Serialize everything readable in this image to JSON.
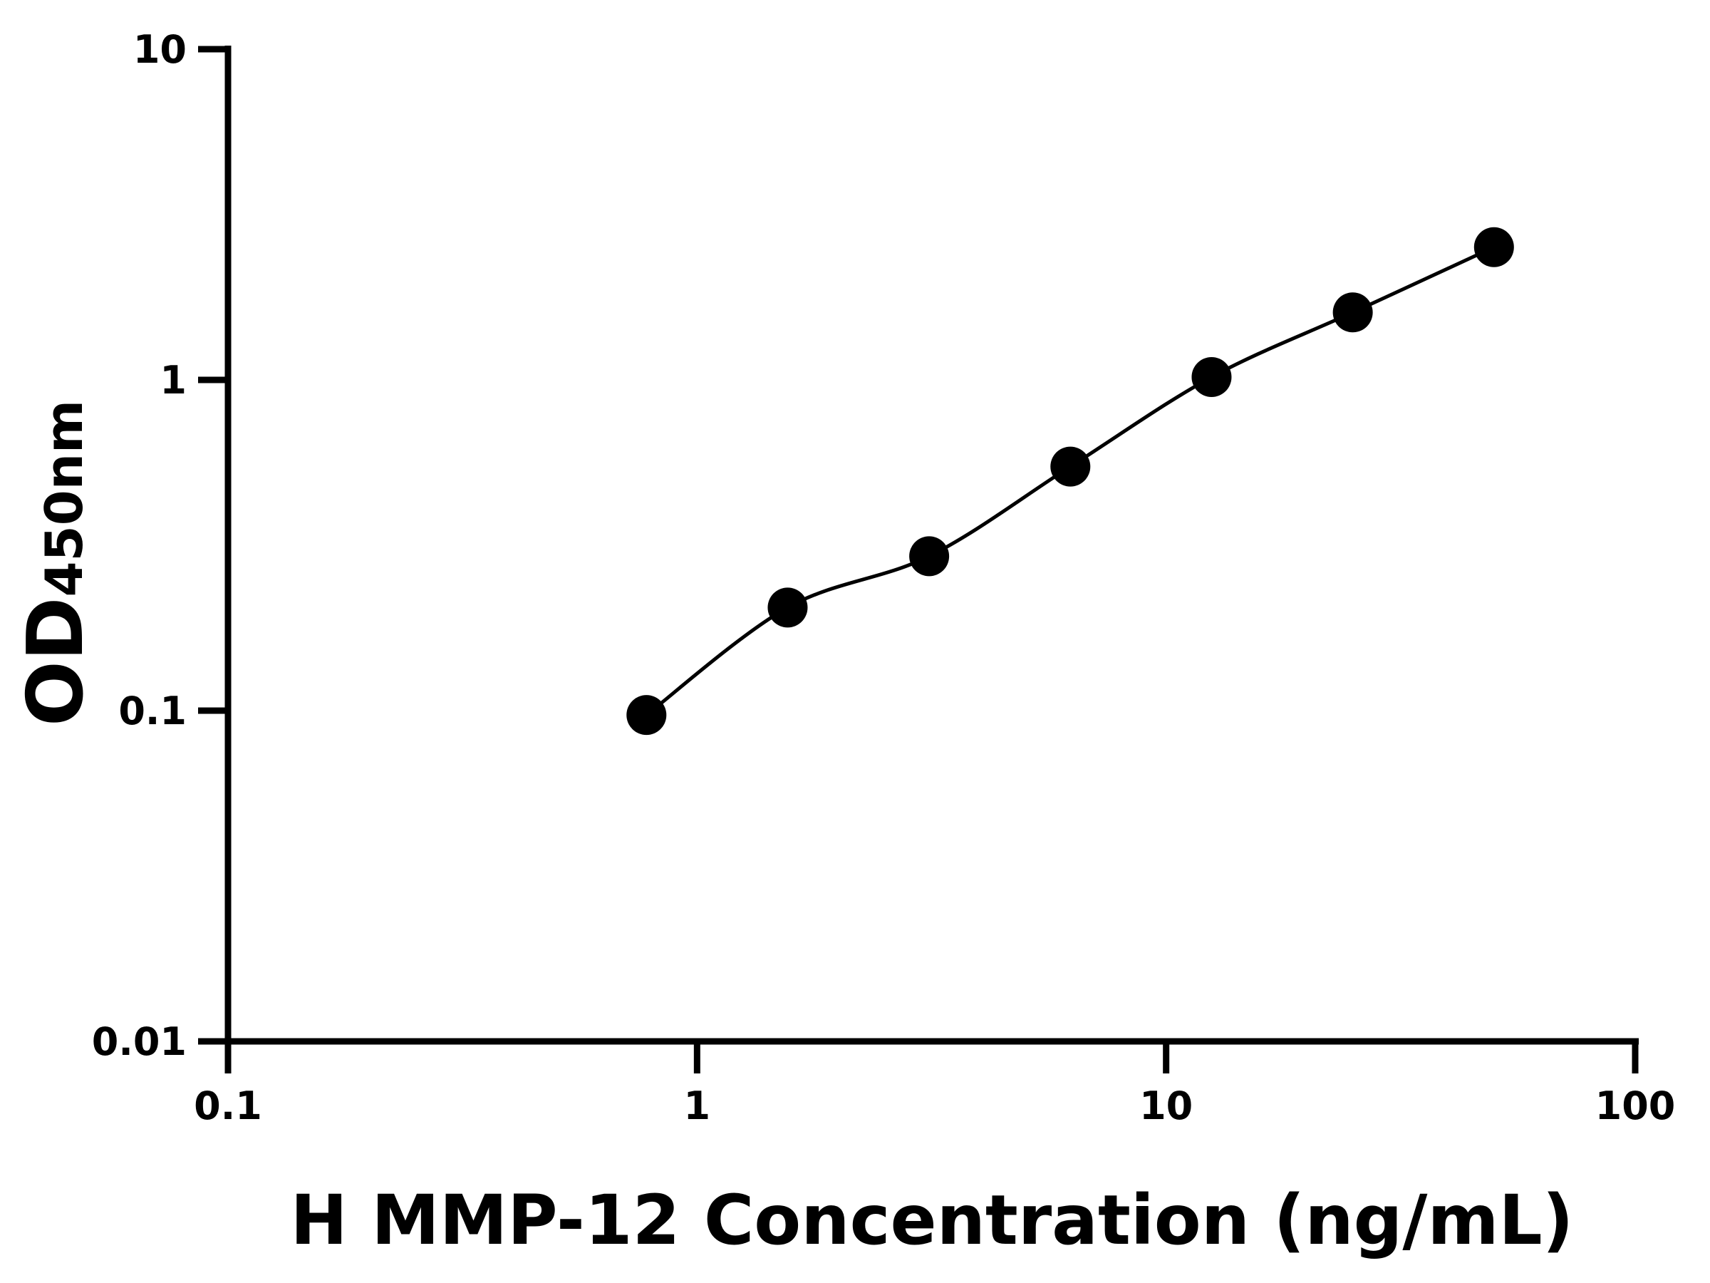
{
  "chart_data": {
    "type": "scatter",
    "title": "",
    "xlabel": "H MMP-12 Concentration (ng/mL)",
    "ylabel_main": "OD",
    "ylabel_sub": "450nm",
    "x_scale": "log",
    "y_scale": "log",
    "xlim": [
      0.1,
      100
    ],
    "ylim": [
      0.01,
      10
    ],
    "x_ticks": [
      0.1,
      1,
      10,
      100
    ],
    "x_tick_labels": [
      "0.1",
      "1",
      "10",
      "100"
    ],
    "y_ticks": [
      0.01,
      0.1,
      1,
      10
    ],
    "y_tick_labels": [
      "0.01",
      "0.1",
      "1",
      "10"
    ],
    "grid": false,
    "legend": "none",
    "series": [
      {
        "x": [
          0.78,
          1.56,
          3.125,
          6.25,
          12.5,
          25,
          50
        ],
        "y": [
          0.097,
          0.205,
          0.293,
          0.547,
          1.02,
          1.6,
          2.52
        ],
        "marker": "filled-circle",
        "fit_line": true,
        "color": "#000000"
      }
    ]
  }
}
